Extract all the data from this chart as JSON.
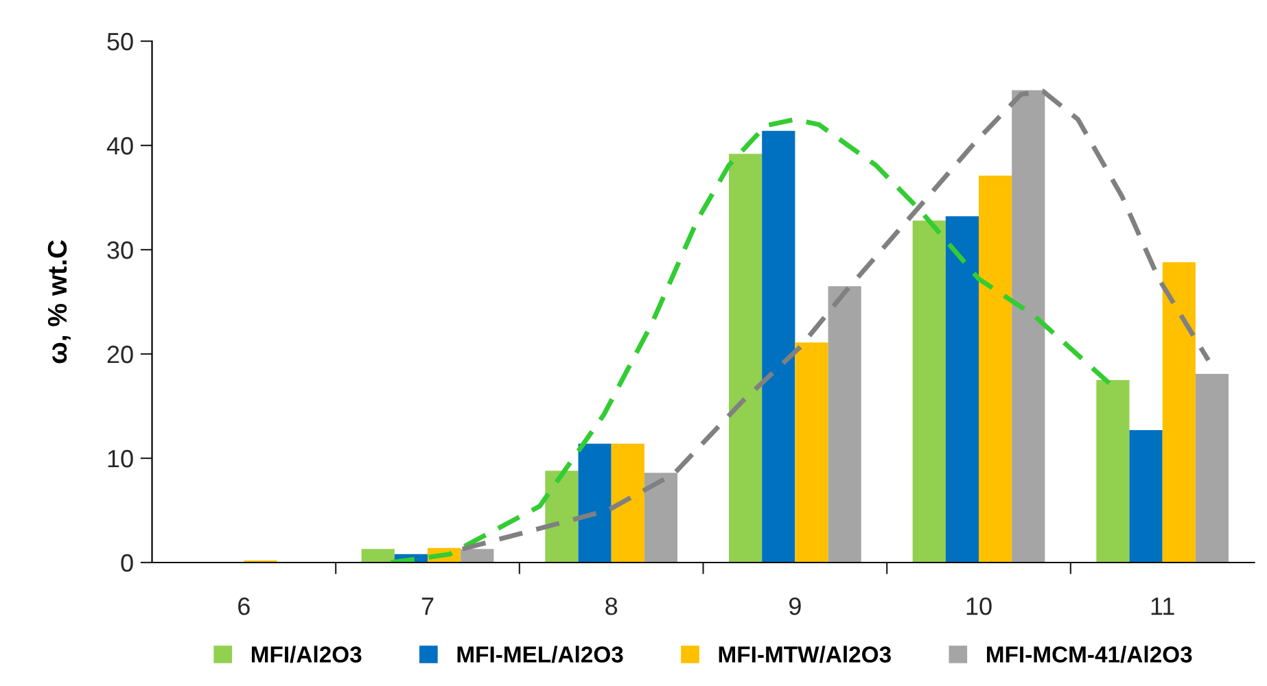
{
  "chart_data": {
    "type": "bar",
    "ylabel": "ω, % wt.C",
    "x": [
      6,
      7,
      8,
      9,
      10,
      11
    ],
    "xlim": [
      5.5,
      11.5
    ],
    "xticks": [
      6,
      {
        "value": 6.5,
        "label": null
      },
      7,
      {
        "value": 7.5,
        "label": null
      },
      8,
      {
        "value": 8.5,
        "label": null
      },
      9,
      {
        "value": 9.5,
        "label": null
      },
      10,
      {
        "value": 10.5,
        "label": null
      },
      11
    ],
    "ylim": [
      0,
      50
    ],
    "yticks": [
      0,
      10,
      20,
      30,
      40,
      50
    ],
    "grid": false,
    "legend": "bottom",
    "series": [
      {
        "name": "MFI/Al2O3",
        "color": "#92d050",
        "values": [
          0,
          1.3,
          8.8,
          39.2,
          32.8,
          17.5
        ]
      },
      {
        "name": "MFI-MEL/Al2O3",
        "color": "#0070c0",
        "values": [
          0,
          0.8,
          11.4,
          41.4,
          33.2,
          12.7
        ]
      },
      {
        "name": "MFI-MTW/Al2O3",
        "color": "#ffc000",
        "values": [
          0.2,
          1.4,
          11.4,
          21.1,
          37.1,
          28.8
        ]
      },
      {
        "name": "MFI-MCM-41/Al2O3",
        "color": "#a5a5a5",
        "values": [
          0,
          1.3,
          8.6,
          26.5,
          45.3,
          18.1
        ]
      },
      {
        "type": "line",
        "color": "#33cc33",
        "line_style": "dashed",
        "x": [
          6.8,
          7.12,
          7.61,
          7.96,
          8.22,
          8.47,
          8.64,
          8.84,
          9.0,
          9.13,
          9.44,
          9.68,
          10.0,
          10.3,
          10.71
        ],
        "values": [
          0,
          0.8,
          5.4,
          14.2,
          22.9,
          32.9,
          38.1,
          41.9,
          42.5,
          42.0,
          38.1,
          33.8,
          27.2,
          23.7,
          17.2
        ]
      },
      {
        "type": "line",
        "color": "#808080",
        "line_style": "dashed",
        "x": [
          7.19,
          7.98,
          8.34,
          8.71,
          9.03,
          9.27,
          9.68,
          9.98,
          10.23,
          10.35,
          10.54,
          10.78,
          10.98,
          11.25
        ],
        "values": [
          1.3,
          5.0,
          8.5,
          15.4,
          20.7,
          25.9,
          34.2,
          40.3,
          44.9,
          45.2,
          42.5,
          35.1,
          27.2,
          19.4
        ]
      }
    ]
  }
}
